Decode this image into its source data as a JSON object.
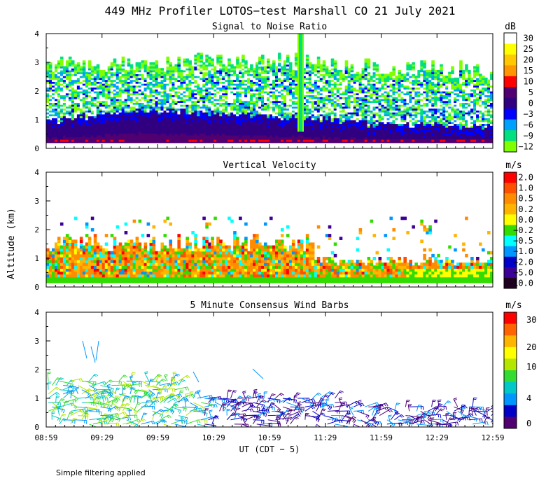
{
  "title": "449 MHz Profiler LOTOS−test Marshall CO 21 July 2021",
  "ylabel": "Altitude (km)",
  "xlabel": "UT (CDT − 5)",
  "footer": "Simple filtering applied",
  "chart_data": [
    {
      "type": "heatmap",
      "title": "Signal to Noise Ratio",
      "unit": "dB",
      "xlabel": "UT (CDT − 5)",
      "ylabel": "Altitude (km)",
      "xticks": [
        "08:59",
        "09:29",
        "09:59",
        "10:29",
        "10:59",
        "11:29",
        "11:59",
        "12:29",
        "12:59"
      ],
      "xlim": [
        "08:59",
        "12:59"
      ],
      "ylim": [
        0,
        4
      ],
      "yticks": [
        "0",
        "1",
        "2",
        "3",
        "4"
      ],
      "colorbar": {
        "labels": [
          "30",
          "25",
          "20",
          "15",
          "10",
          "5",
          "0",
          "−3",
          "−6",
          "−9",
          "−12"
        ],
        "colors": [
          "#ffffff",
          "#ffff00",
          "#ffc800",
          "#ff9600",
          "#ff0000",
          "#500070",
          "#300080",
          "#0000ff",
          "#00a0ff",
          "#00e080",
          "#80ff00"
        ]
      },
      "profile": {
        "strong_echo_top_km": [
          0.6,
          0.9,
          1.0,
          0.9,
          0.8,
          0.7,
          0.5,
          0.5,
          0.4
        ],
        "echo_top_km": [
          2.6,
          2.7,
          2.6,
          2.8,
          2.8,
          2.7,
          2.5,
          2.5,
          2.4
        ]
      }
    },
    {
      "type": "heatmap",
      "title": "Vertical Velocity",
      "unit": "m/s",
      "xticks": [
        "08:59",
        "09:29",
        "09:59",
        "10:29",
        "10:59",
        "11:29",
        "11:59",
        "12:29",
        "12:59"
      ],
      "ylim": [
        0,
        4
      ],
      "yticks": [
        "0",
        "1",
        "2",
        "3",
        "4"
      ],
      "colorbar": {
        "labels": [
          "2.0",
          "1.0",
          "0.5",
          "0.2",
          "0.0",
          "−0.2",
          "−0.5",
          "−1.0",
          "−2.0",
          "−5.0",
          "−10.0"
        ],
        "colors": [
          "#ff0000",
          "#ff5000",
          "#ff8c00",
          "#ffb400",
          "#ffff00",
          "#32dc00",
          "#00ffff",
          "#0096ff",
          "#0000c8",
          "#3c0096",
          "#200020"
        ]
      }
    },
    {
      "type": "scatter",
      "title": "5 Minute Consensus Wind Barbs",
      "unit": "m/s",
      "xticks": [
        "08:59",
        "09:29",
        "09:59",
        "10:29",
        "10:59",
        "11:29",
        "11:59",
        "12:29",
        "12:59"
      ],
      "ylim": [
        0,
        4
      ],
      "yticks": [
        "0",
        "1",
        "2",
        "3",
        "4"
      ],
      "colorbar": {
        "labels": [
          "30",
          "20",
          "10",
          "4",
          "0"
        ],
        "colors": [
          "#ff0000",
          "#ff6400",
          "#ffb400",
          "#ffff00",
          "#b4e600",
          "#32dc32",
          "#00c8c8",
          "#0096ff",
          "#0000c8",
          "#500070"
        ]
      }
    }
  ]
}
